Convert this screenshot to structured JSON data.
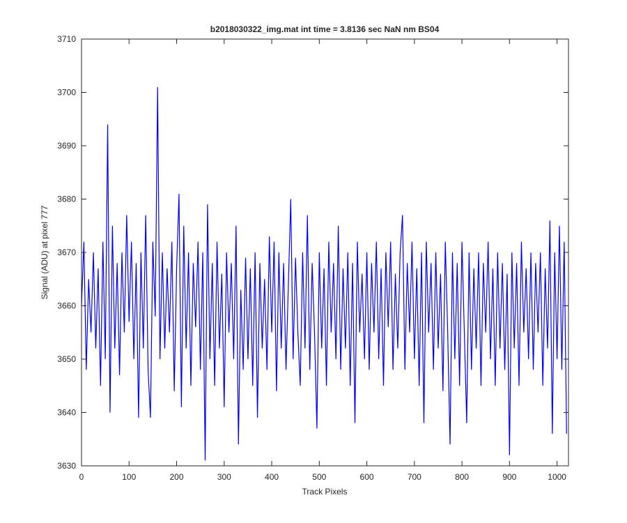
{
  "chart_data": {
    "type": "line",
    "title": "b2018030322_img.mat int time = 3.8136 sec  NaN nm BS04",
    "x_label": "Track Pixels",
    "y_label": "Signal (ADU) at pixel 777",
    "xlim": [
      0,
      1024
    ],
    "ylim": [
      3630,
      3710
    ],
    "xticks": [
      0,
      100,
      200,
      300,
      400,
      500,
      600,
      700,
      800,
      900,
      1000
    ],
    "yticks": [
      3630,
      3640,
      3650,
      3660,
      3670,
      3680,
      3690,
      3700,
      3710
    ],
    "x": [
      0,
      5,
      10,
      15,
      20,
      25,
      30,
      35,
      40,
      45,
      50,
      55,
      60,
      65,
      70,
      75,
      80,
      85,
      90,
      95,
      100,
      105,
      110,
      115,
      120,
      125,
      130,
      135,
      140,
      145,
      150,
      155,
      160,
      165,
      170,
      175,
      180,
      185,
      190,
      195,
      200,
      205,
      210,
      215,
      220,
      225,
      230,
      235,
      240,
      245,
      250,
      255,
      260,
      265,
      270,
      275,
      280,
      285,
      290,
      295,
      300,
      305,
      310,
      315,
      320,
      325,
      330,
      335,
      340,
      345,
      350,
      355,
      360,
      365,
      370,
      375,
      380,
      385,
      390,
      395,
      400,
      405,
      410,
      415,
      420,
      425,
      430,
      435,
      440,
      445,
      450,
      455,
      460,
      465,
      470,
      475,
      480,
      485,
      490,
      495,
      500,
      505,
      510,
      515,
      520,
      525,
      530,
      535,
      540,
      545,
      550,
      555,
      560,
      565,
      570,
      575,
      580,
      585,
      590,
      595,
      600,
      605,
      610,
      615,
      620,
      625,
      630,
      635,
      640,
      645,
      650,
      655,
      660,
      665,
      670,
      675,
      680,
      685,
      690,
      695,
      700,
      705,
      710,
      715,
      720,
      725,
      730,
      735,
      740,
      745,
      750,
      755,
      760,
      765,
      770,
      775,
      780,
      785,
      790,
      795,
      800,
      805,
      810,
      815,
      820,
      825,
      830,
      835,
      840,
      845,
      850,
      855,
      860,
      865,
      870,
      875,
      880,
      885,
      890,
      895,
      900,
      905,
      910,
      915,
      920,
      925,
      930,
      935,
      940,
      945,
      950,
      955,
      960,
      965,
      970,
      975,
      980,
      985,
      990,
      995,
      1000,
      1005,
      1010,
      1015,
      1020
    ],
    "series": [
      {
        "color": "#0000ff",
        "values": [
          3660,
          3672,
          3648,
          3665,
          3655,
          3670,
          3652,
          3667,
          3645,
          3672,
          3650,
          3694,
          3640,
          3675,
          3652,
          3668,
          3647,
          3670,
          3655,
          3677,
          3657,
          3672,
          3650,
          3668,
          3639,
          3670,
          3652,
          3677,
          3648,
          3639,
          3672,
          3658,
          3701,
          3650,
          3670,
          3652,
          3667,
          3655,
          3672,
          3644,
          3667,
          3681,
          3641,
          3675,
          3652,
          3670,
          3645,
          3668,
          3656,
          3672,
          3648,
          3670,
          3631,
          3679,
          3650,
          3668,
          3645,
          3672,
          3652,
          3666,
          3641,
          3670,
          3655,
          3668,
          3650,
          3675,
          3634,
          3663,
          3648,
          3669,
          3650,
          3667,
          3645,
          3670,
          3639,
          3668,
          3652,
          3665,
          3648,
          3673,
          3655,
          3672,
          3644,
          3670,
          3652,
          3668,
          3648,
          3664,
          3680,
          3650,
          3669,
          3655,
          3645,
          3670,
          3652,
          3677,
          3648,
          3668,
          3655,
          3637,
          3670,
          3652,
          3667,
          3645,
          3672,
          3655,
          3668,
          3650,
          3675,
          3648,
          3667,
          3652,
          3670,
          3645,
          3668,
          3638,
          3672,
          3655,
          3666,
          3650,
          3670,
          3648,
          3668,
          3655,
          3672,
          3650,
          3667,
          3645,
          3670,
          3656,
          3672,
          3648,
          3666,
          3652,
          3670,
          3677,
          3648,
          3668,
          3655,
          3672,
          3650,
          3667,
          3645,
          3670,
          3638,
          3672,
          3655,
          3668,
          3648,
          3670,
          3652,
          3666,
          3644,
          3672,
          3655,
          3634,
          3670,
          3650,
          3668,
          3645,
          3672,
          3655,
          3638,
          3670,
          3648,
          3667,
          3652,
          3670,
          3645,
          3668,
          3655,
          3672,
          3650,
          3667,
          3645,
          3670,
          3652,
          3668,
          3648,
          3666,
          3632,
          3670,
          3652,
          3668,
          3645,
          3672,
          3655,
          3667,
          3650,
          3670,
          3648,
          3668,
          3655,
          3670,
          3645,
          3667,
          3652,
          3676,
          3636,
          3670,
          3650,
          3675,
          3648,
          3672,
          3636
        ]
      }
    ]
  }
}
